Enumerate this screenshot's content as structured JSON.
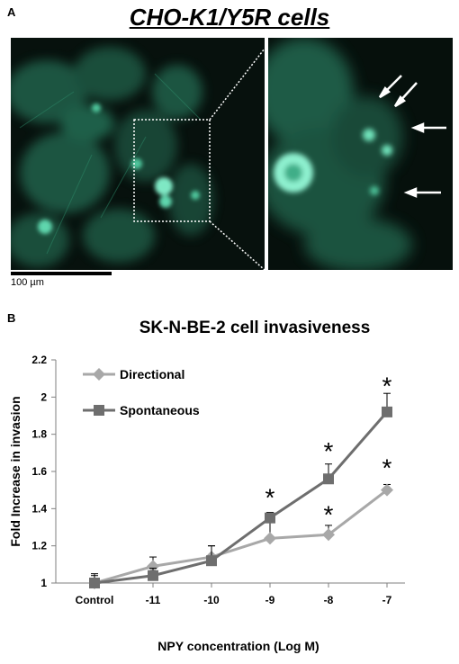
{
  "figure": {
    "panel_a_letter": "A",
    "panel_b_letter": "B",
    "cells_title": "CHO-K1/Y5R cells",
    "scale_label": "100 µm"
  },
  "colors": {
    "directional": "#a8a8a8",
    "spontaneous": "#6e6e6e",
    "fluorescence": "#3fcf9e",
    "background": "#07110d"
  },
  "chart_data": {
    "type": "line",
    "title": "SK-N-BE-2 cell invasiveness",
    "xlabel": "NPY concentration (Log M)",
    "ylabel": "Fold Increase in invasion",
    "categories": [
      "Control",
      "-11",
      "-10",
      "-9",
      "-8",
      "-7"
    ],
    "ylim": [
      1,
      2.2
    ],
    "yticks": [
      "1",
      "1.2",
      "1.4",
      "1.6",
      "1.8",
      "2",
      "2.2"
    ],
    "legend_position": "top-left",
    "series": [
      {
        "name": "Directional",
        "marker": "diamond",
        "values": [
          1.0,
          1.09,
          1.14,
          1.24,
          1.26,
          1.5
        ],
        "error": [
          0.04,
          0.05,
          0.06,
          0.09,
          0.05,
          0.03
        ]
      },
      {
        "name": "Spontaneous",
        "marker": "square",
        "values": [
          1.0,
          1.04,
          1.12,
          1.35,
          1.56,
          1.92
        ],
        "error": [
          0.05,
          0.04,
          0.08,
          0.03,
          0.08,
          0.1
        ]
      }
    ],
    "annotations": [
      {
        "text": "*",
        "category": "-9",
        "y": 1.5
      },
      {
        "text": "*",
        "category": "-8",
        "y": 1.75
      },
      {
        "text": "*",
        "category": "-8",
        "y": 1.41
      },
      {
        "text": "*",
        "category": "-7",
        "y": 2.1
      },
      {
        "text": "*",
        "category": "-7",
        "y": 1.66
      }
    ]
  }
}
